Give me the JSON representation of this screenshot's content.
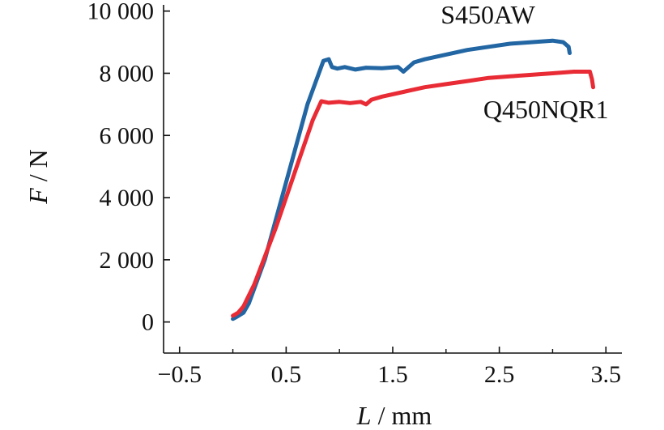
{
  "chart_data": {
    "type": "line",
    "title": "",
    "xlabel_var": "L",
    "xlabel_unit": "mm",
    "ylabel_var": "F",
    "ylabel_unit": "N",
    "xlim": [
      -0.65,
      3.65
    ],
    "ylim": [
      -1000,
      10200
    ],
    "x_ticks": [
      -0.5,
      0.5,
      1.5,
      2.5,
      3.5
    ],
    "x_tick_labels": [
      "−0.5",
      "0.5",
      "1.5",
      "2.5",
      "3.5"
    ],
    "y_ticks": [
      0,
      2000,
      4000,
      6000,
      8000,
      10000
    ],
    "y_tick_labels": [
      "0",
      "2 000",
      "4 000",
      "6 000",
      "8 000",
      "10 000"
    ],
    "grid": false,
    "series": [
      {
        "name": "S450AW",
        "color": "#2266a3",
        "label_x": 1.95,
        "label_y": 9600,
        "x": [
          0.0,
          0.03,
          0.1,
          0.15,
          0.3,
          0.5,
          0.7,
          0.85,
          0.9,
          0.93,
          0.98,
          1.05,
          1.15,
          1.25,
          1.4,
          1.55,
          1.6,
          1.65,
          1.7,
          1.8,
          2.0,
          2.2,
          2.4,
          2.6,
          2.8,
          3.0,
          3.1,
          3.15,
          3.16
        ],
        "y": [
          100,
          150,
          300,
          600,
          2000,
          4500,
          7000,
          8400,
          8450,
          8200,
          8150,
          8200,
          8120,
          8180,
          8160,
          8200,
          8050,
          8200,
          8350,
          8450,
          8600,
          8750,
          8850,
          8950,
          9000,
          9050,
          9000,
          8850,
          8650
        ]
      },
      {
        "name": "Q450NQR1",
        "color": "#e82b35",
        "label_x": 2.35,
        "label_y": 6550,
        "x": [
          0.0,
          0.05,
          0.1,
          0.2,
          0.4,
          0.6,
          0.75,
          0.83,
          0.9,
          1.0,
          1.1,
          1.2,
          1.25,
          1.3,
          1.4,
          1.6,
          1.8,
          2.0,
          2.2,
          2.4,
          2.6,
          2.8,
          3.0,
          3.2,
          3.3,
          3.35,
          3.37,
          3.38
        ],
        "y": [
          200,
          300,
          500,
          1200,
          3000,
          5000,
          6500,
          7100,
          7050,
          7080,
          7040,
          7080,
          7000,
          7150,
          7250,
          7400,
          7550,
          7650,
          7750,
          7850,
          7900,
          7950,
          8000,
          8050,
          8050,
          8050,
          7800,
          7550
        ]
      }
    ]
  }
}
